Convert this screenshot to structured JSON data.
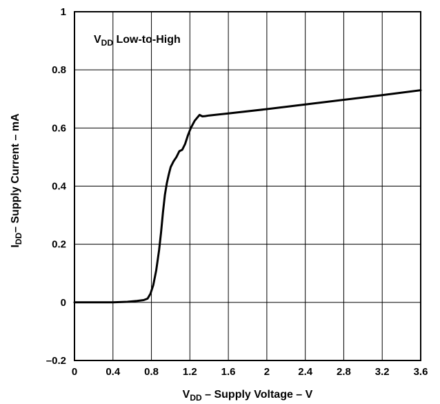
{
  "chart_data": {
    "type": "line",
    "title": "",
    "xlabel": {
      "main": "V",
      "sub": "DD",
      "rest": " – Supply Voltage – V"
    },
    "ylabel": {
      "main": "I",
      "sub": "DD",
      "rest": "– Supply Current – mA"
    },
    "annotation": {
      "main": "V",
      "sub": "DD",
      "rest": " Low-to-High"
    },
    "xlim": [
      0,
      3.6
    ],
    "ylim": [
      -0.2,
      1.0
    ],
    "x_ticks": [
      0,
      0.4,
      0.8,
      1.2,
      1.6,
      2.0,
      2.4,
      2.8,
      3.2,
      3.6
    ],
    "x_tick_labels": [
      "0",
      "0.4",
      "0.8",
      "1.2",
      "1.6",
      "2",
      "2.4",
      "2.8",
      "3.2",
      "3.6"
    ],
    "y_ticks": [
      -0.2,
      0,
      0.2,
      0.4,
      0.6,
      0.8,
      1.0
    ],
    "y_tick_labels": [
      "–0.2",
      "0",
      "0.2",
      "0.4",
      "0.6",
      "0.8",
      "1"
    ],
    "grid": true,
    "legend": "none",
    "series": [
      {
        "color": "#000000",
        "x": [
          0,
          0.2,
          0.4,
          0.55,
          0.65,
          0.72,
          0.76,
          0.79,
          0.82,
          0.85,
          0.88,
          0.9,
          0.92,
          0.94,
          0.96,
          0.98,
          1.0,
          1.03,
          1.06,
          1.09,
          1.12,
          1.15,
          1.18,
          1.21,
          1.25,
          1.3,
          1.33,
          1.36,
          1.4,
          1.6,
          2.0,
          2.4,
          2.8,
          3.2,
          3.6
        ],
        "y": [
          0,
          0,
          0,
          0.002,
          0.005,
          0.008,
          0.013,
          0.03,
          0.06,
          0.11,
          0.18,
          0.24,
          0.31,
          0.37,
          0.41,
          0.44,
          0.465,
          0.485,
          0.5,
          0.52,
          0.525,
          0.545,
          0.575,
          0.6,
          0.625,
          0.645,
          0.64,
          0.641,
          0.643,
          0.65,
          0.665,
          0.681,
          0.697,
          0.713,
          0.73
        ]
      }
    ]
  }
}
